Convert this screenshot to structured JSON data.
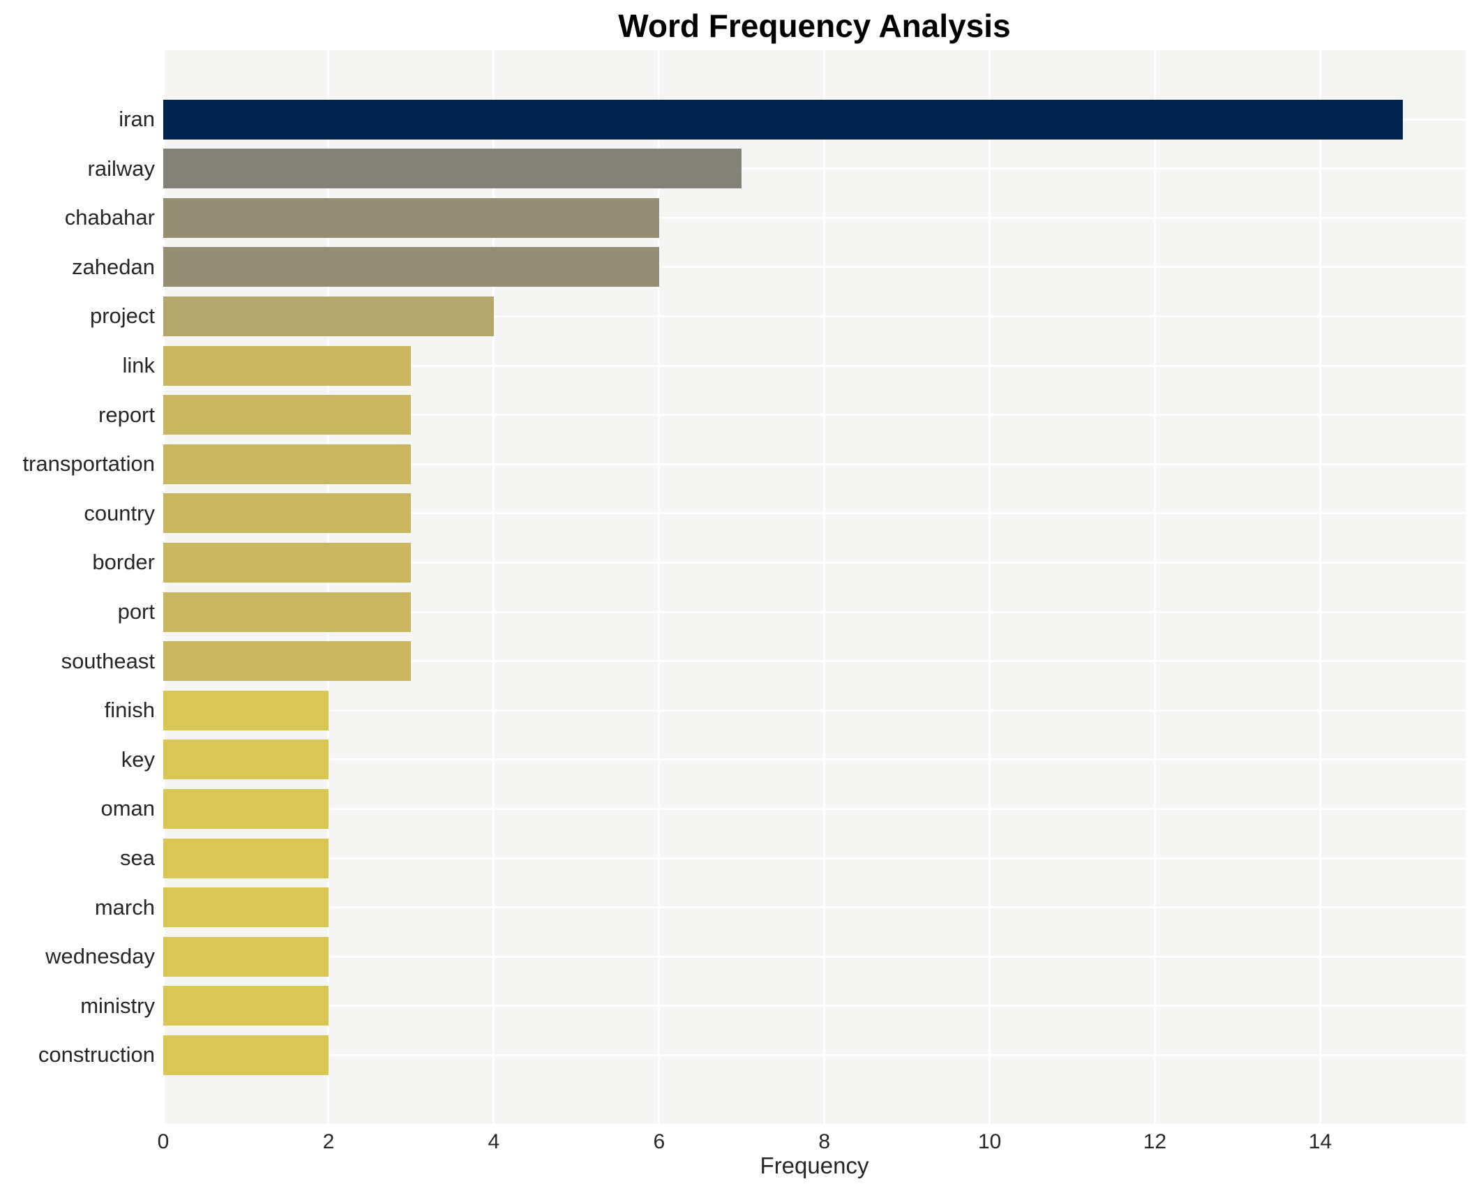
{
  "chart_data": {
    "type": "bar",
    "orientation": "horizontal",
    "title": "Word Frequency Analysis",
    "xlabel": "Frequency",
    "ylabel": "",
    "categories": [
      "iran",
      "railway",
      "chabahar",
      "zahedan",
      "project",
      "link",
      "report",
      "transportation",
      "country",
      "border",
      "port",
      "southeast",
      "finish",
      "key",
      "oman",
      "sea",
      "march",
      "wednesday",
      "ministry",
      "construction"
    ],
    "values": [
      15,
      7,
      6,
      6,
      4,
      3,
      3,
      3,
      3,
      3,
      3,
      3,
      2,
      2,
      2,
      2,
      2,
      2,
      2,
      2
    ],
    "bar_colors": [
      "#02234d",
      "#848276",
      "#948e74",
      "#948e74",
      "#b5a66d",
      "#c8b660",
      "#c8b660",
      "#c8b660",
      "#c8b660",
      "#c8b660",
      "#c8b660",
      "#c8b660",
      "#d9c755",
      "#d9c755",
      "#d9c755",
      "#d9c755",
      "#d9c755",
      "#d9c755",
      "#d9c755",
      "#d9c755"
    ],
    "xticks": [
      0,
      2,
      4,
      6,
      8,
      10,
      12,
      14
    ],
    "xlim": [
      0,
      15.76
    ],
    "grid": true,
    "legend": "none",
    "plot_bg_color": "#f5f5f3",
    "grid_color": "#ffffff",
    "tick_text_color": "#262626",
    "title_color": "#000000"
  }
}
